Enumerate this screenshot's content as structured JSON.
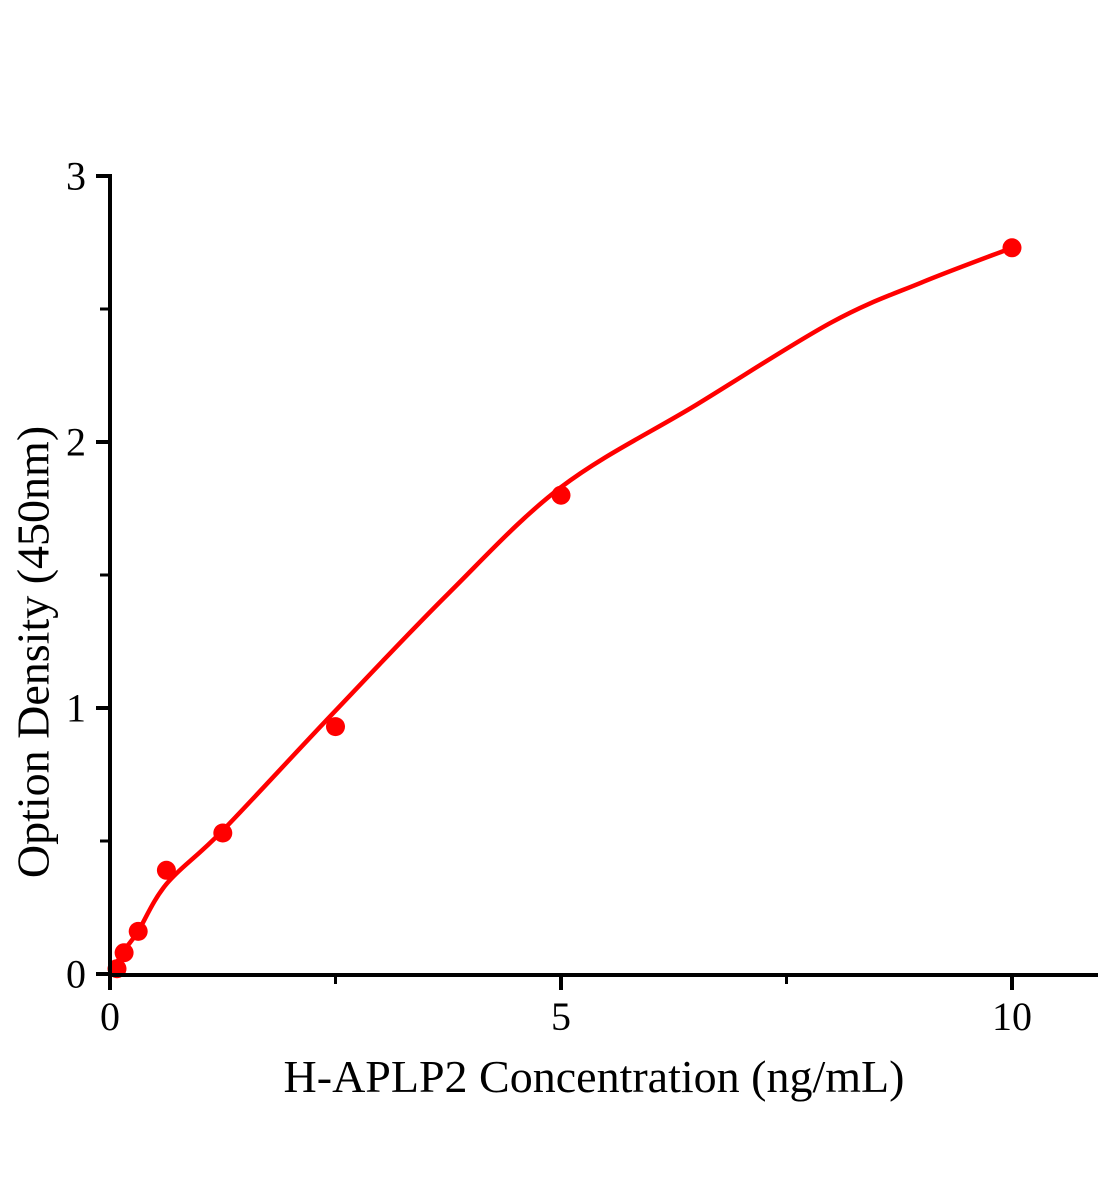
{
  "figure": {
    "background_color": "#ffffff",
    "axis_color": "#000000",
    "accent_color": "#ff0000"
  },
  "chart_data": {
    "type": "scatter",
    "title": "",
    "xlabel": "H-APLP2 Concentration（ng/mL）",
    "ylabel": "Option Density（450nm）",
    "xlim": [
      0,
      10.95
    ],
    "ylim": [
      0,
      3
    ],
    "x_major_ticks": [
      0,
      5,
      10
    ],
    "x_minor_ticks": [
      2.5,
      7.5
    ],
    "y_major_ticks": [
      0,
      1,
      2,
      3
    ],
    "y_minor_ticks": [
      0.5,
      1.5,
      2.5
    ],
    "grid": false,
    "legend": "none",
    "series": [
      {
        "marker_shape": "circle",
        "marker_color": "#ff0000",
        "line_color": "#ff0000",
        "points": [
          {
            "x": 0.078,
            "y": 0.02
          },
          {
            "x": 0.156,
            "y": 0.08
          },
          {
            "x": 0.3125,
            "y": 0.16
          },
          {
            "x": 0.625,
            "y": 0.39
          },
          {
            "x": 1.25,
            "y": 0.53
          },
          {
            "x": 2.5,
            "y": 0.93
          },
          {
            "x": 5,
            "y": 1.8
          },
          {
            "x": 10,
            "y": 2.73
          }
        ],
        "fit_curve_anchor_points": [
          [
            0,
            0
          ],
          [
            0.16,
            0.09
          ],
          [
            0.31,
            0.16
          ],
          [
            0.63,
            0.34
          ],
          [
            1.25,
            0.54
          ],
          [
            2.5,
            0.99
          ],
          [
            3.75,
            1.43
          ],
          [
            5,
            1.83
          ],
          [
            6.5,
            2.14
          ],
          [
            8,
            2.45
          ],
          [
            9,
            2.6
          ],
          [
            10,
            2.73
          ]
        ]
      }
    ]
  }
}
